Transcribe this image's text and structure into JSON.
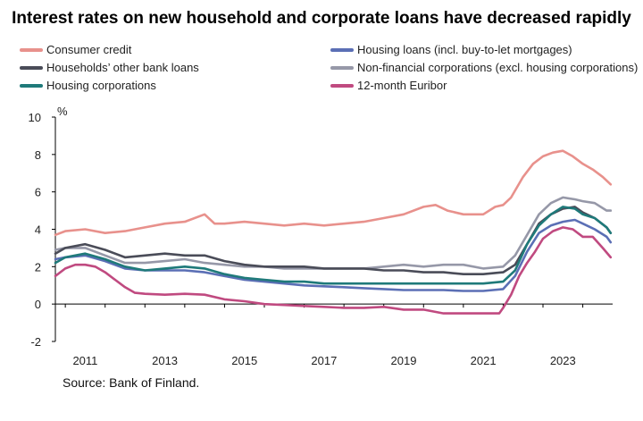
{
  "title": "Interest rates on new household and corporate loans have decreased rapidly",
  "source": "Source: Bank of Finland.",
  "chart_data": {
    "type": "line",
    "title": "Interest rates on new household and corporate loans have decreased rapidly",
    "ylabel": "%",
    "xlabel": "",
    "xlim": [
      2010.75,
      2024.75
    ],
    "ylim": [
      -2,
      10
    ],
    "yticks": [
      -2,
      0,
      2,
      4,
      6,
      8,
      10
    ],
    "xticks": [
      2011,
      2013,
      2015,
      2017,
      2019,
      2021,
      2023
    ],
    "grid": false,
    "legend_position": "top, two columns",
    "series": [
      {
        "name": "Consumer credit",
        "color": "#E8918C",
        "x": [
          2010.75,
          2011,
          2011.5,
          2012,
          2012.5,
          2013,
          2013.5,
          2014,
          2014.5,
          2014.75,
          2015,
          2015.5,
          2016,
          2016.5,
          2017,
          2017.5,
          2018,
          2018.5,
          2019,
          2019.5,
          2020,
          2020.3,
          2020.6,
          2021,
          2021.5,
          2021.8,
          2022,
          2022.2,
          2022.5,
          2022.75,
          2023,
          2023.25,
          2023.5,
          2023.75,
          2024,
          2024.25,
          2024.5,
          2024.7
        ],
        "values": [
          3.7,
          3.9,
          4.0,
          3.8,
          3.9,
          4.1,
          4.3,
          4.4,
          4.8,
          4.3,
          4.3,
          4.4,
          4.3,
          4.2,
          4.3,
          4.2,
          4.3,
          4.4,
          4.6,
          4.8,
          5.2,
          5.3,
          5.0,
          4.8,
          4.8,
          5.2,
          5.3,
          5.7,
          6.8,
          7.5,
          7.9,
          8.1,
          8.2,
          7.9,
          7.5,
          7.2,
          6.8,
          6.4
        ]
      },
      {
        "name": "Households’ other bank loans",
        "color": "#4A4C58",
        "x": [
          2010.75,
          2011,
          2011.5,
          2012,
          2012.5,
          2013,
          2013.5,
          2014,
          2014.5,
          2015,
          2015.5,
          2016,
          2016.5,
          2017,
          2017.5,
          2018,
          2018.5,
          2019,
          2019.5,
          2020,
          2020.5,
          2021,
          2021.5,
          2022,
          2022.3,
          2022.6,
          2022.9,
          2023.2,
          2023.5,
          2023.8,
          2024,
          2024.3,
          2024.6,
          2024.7
        ],
        "values": [
          2.7,
          3.0,
          3.2,
          2.9,
          2.5,
          2.6,
          2.7,
          2.6,
          2.6,
          2.3,
          2.1,
          2.0,
          2.0,
          2.0,
          1.9,
          1.9,
          1.9,
          1.8,
          1.8,
          1.7,
          1.7,
          1.6,
          1.6,
          1.7,
          2.1,
          3.2,
          4.3,
          4.8,
          5.1,
          5.2,
          4.9,
          4.6,
          4.1,
          3.8
        ]
      },
      {
        "name": "Housing corporations",
        "color": "#1F7A7A",
        "x": [
          2010.75,
          2011,
          2011.5,
          2012,
          2012.5,
          2013,
          2013.5,
          2014,
          2014.5,
          2015,
          2015.5,
          2016,
          2016.5,
          2017,
          2017.5,
          2018,
          2018.5,
          2019,
          2019.5,
          2020,
          2020.5,
          2021,
          2021.5,
          2022,
          2022.3,
          2022.6,
          2022.9,
          2023.2,
          2023.5,
          2023.8,
          2024,
          2024.3,
          2024.6,
          2024.7
        ],
        "values": [
          2.2,
          2.5,
          2.7,
          2.4,
          2.0,
          1.8,
          1.9,
          2.0,
          1.9,
          1.6,
          1.4,
          1.3,
          1.2,
          1.2,
          1.1,
          1.1,
          1.1,
          1.1,
          1.1,
          1.1,
          1.1,
          1.1,
          1.1,
          1.2,
          1.8,
          3.2,
          4.2,
          4.8,
          5.2,
          5.1,
          4.8,
          4.6,
          4.1,
          3.8
        ]
      },
      {
        "name": "Housing loans (incl. buy-to-let mortgages)",
        "color": "#5B6FB5",
        "x": [
          2010.75,
          2011,
          2011.5,
          2012,
          2012.5,
          2013,
          2013.5,
          2014,
          2014.5,
          2015,
          2015.5,
          2016,
          2016.5,
          2017,
          2017.5,
          2018,
          2018.5,
          2019,
          2019.5,
          2020,
          2020.5,
          2021,
          2021.5,
          2022,
          2022.3,
          2022.6,
          2022.9,
          2023.2,
          2023.5,
          2023.8,
          2024,
          2024.3,
          2024.6,
          2024.7
        ],
        "values": [
          2.4,
          2.5,
          2.6,
          2.3,
          1.9,
          1.8,
          1.8,
          1.8,
          1.7,
          1.5,
          1.3,
          1.2,
          1.1,
          1.0,
          0.95,
          0.9,
          0.85,
          0.8,
          0.75,
          0.75,
          0.75,
          0.7,
          0.7,
          0.8,
          1.5,
          2.8,
          3.8,
          4.2,
          4.4,
          4.5,
          4.3,
          4.0,
          3.6,
          3.3
        ]
      },
      {
        "name": "Non-financial corporations (excl. housing corporations)",
        "color": "#9698A8",
        "x": [
          2010.75,
          2011,
          2011.5,
          2012,
          2012.5,
          2013,
          2013.5,
          2014,
          2014.5,
          2015,
          2015.5,
          2016,
          2016.5,
          2017,
          2017.5,
          2018,
          2018.5,
          2019,
          2019.5,
          2020,
          2020.5,
          2021,
          2021.5,
          2022,
          2022.3,
          2022.6,
          2022.9,
          2023.2,
          2023.5,
          2023.8,
          2024,
          2024.3,
          2024.6,
          2024.7
        ],
        "values": [
          2.9,
          3.0,
          3.0,
          2.6,
          2.2,
          2.2,
          2.3,
          2.4,
          2.2,
          2.1,
          2.0,
          2.0,
          1.9,
          1.9,
          1.9,
          1.9,
          1.9,
          2.0,
          2.1,
          2.0,
          2.1,
          2.1,
          1.9,
          2.0,
          2.6,
          3.7,
          4.8,
          5.4,
          5.7,
          5.6,
          5.5,
          5.4,
          5.0,
          5.0
        ]
      },
      {
        "name": "12-month Euribor",
        "color": "#C04A80",
        "x": [
          2010.75,
          2011,
          2011.25,
          2011.5,
          2011.75,
          2012,
          2012.25,
          2012.5,
          2012.75,
          2013,
          2013.5,
          2014,
          2014.5,
          2015,
          2015.5,
          2016,
          2016.5,
          2017,
          2017.5,
          2018,
          2018.5,
          2019,
          2019.5,
          2020,
          2020.5,
          2021,
          2021.5,
          2021.9,
          2022,
          2022.2,
          2022.4,
          2022.6,
          2022.8,
          2023,
          2023.25,
          2023.5,
          2023.75,
          2024,
          2024.25,
          2024.5,
          2024.7
        ],
        "values": [
          1.5,
          1.9,
          2.1,
          2.1,
          2.0,
          1.7,
          1.3,
          0.9,
          0.6,
          0.55,
          0.5,
          0.55,
          0.5,
          0.25,
          0.15,
          0.0,
          -0.05,
          -0.1,
          -0.15,
          -0.2,
          -0.2,
          -0.15,
          -0.3,
          -0.3,
          -0.5,
          -0.5,
          -0.5,
          -0.5,
          -0.2,
          0.5,
          1.5,
          2.2,
          2.8,
          3.5,
          3.9,
          4.1,
          4.0,
          3.6,
          3.6,
          3.0,
          2.5
        ]
      }
    ]
  }
}
